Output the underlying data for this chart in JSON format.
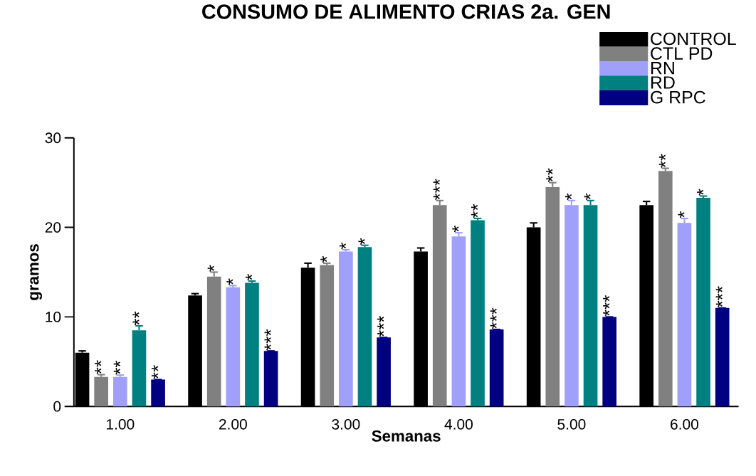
{
  "chart_data": {
    "type": "bar",
    "title": "CONSUMO DE ALIMENTO CRIAS 2a. GEN",
    "xlabel": "Semanas",
    "ylabel": "gramos",
    "categories": [
      "1.00",
      "2.00",
      "3.00",
      "4.00",
      "5.00",
      "6.00"
    ],
    "ylim": [
      0,
      30
    ],
    "yticks": [
      0,
      10,
      20,
      30
    ],
    "legend": "top right",
    "series": [
      {
        "name": "CONTROL",
        "color": "#000000",
        "values": [
          6.0,
          12.4,
          15.5,
          17.3,
          20.0,
          22.5
        ],
        "errors": [
          0.2,
          0.2,
          0.5,
          0.4,
          0.5,
          0.4
        ],
        "value_labels": [
          null,
          null,
          null,
          null,
          null,
          null
        ]
      },
      {
        "name": "CTL PD",
        "color": "#808080",
        "values": [
          3.3,
          14.5,
          15.8,
          22.5,
          24.5,
          26.3
        ],
        "errors": [
          0.25,
          0.5,
          0.2,
          0.5,
          0.5,
          0.3
        ],
        "value_labels": [
          "**",
          "*",
          "*",
          "***",
          "**",
          "**"
        ]
      },
      {
        "name": "RN",
        "color": "#a0a0fa",
        "values": [
          3.3,
          13.3,
          17.3,
          19.0,
          22.5,
          20.5
        ],
        "errors": [
          0.2,
          0.2,
          0.2,
          0.4,
          0.5,
          0.5
        ],
        "value_labels": [
          "**",
          "*",
          "*",
          "*",
          "*",
          "*"
        ]
      },
      {
        "name": "RD",
        "color": "#008080",
        "values": [
          8.5,
          13.8,
          17.8,
          20.8,
          22.5,
          23.3
        ],
        "errors": [
          0.5,
          0.2,
          0.2,
          0.2,
          0.5,
          0.2
        ],
        "value_labels": [
          "**",
          "*",
          "*",
          "**",
          "*",
          "*"
        ]
      },
      {
        "name": "G RPC",
        "color": "#000080",
        "values": [
          3.0,
          6.2,
          7.7,
          8.6,
          10.0,
          11.0
        ],
        "value_labels": [
          "**",
          "***",
          "***",
          "***",
          "***",
          "***"
        ]
      }
    ]
  }
}
